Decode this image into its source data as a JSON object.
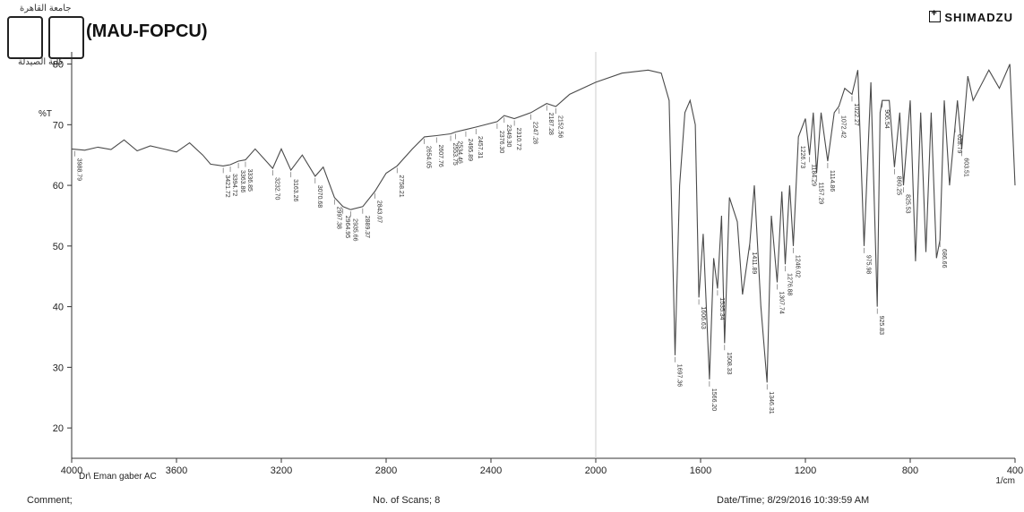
{
  "header": {
    "arabic_top": "جامعة القاهرة",
    "arabic_bottom": "كلية الصيدلة",
    "lab_title": "(MAU-FOPCU)",
    "brand": "SHIMADZU"
  },
  "sample": {
    "label": "Dr\\ Eman gaber  AC"
  },
  "footer": {
    "comment": "Comment;",
    "scans": "No. of Scans; 8",
    "datetime": "Date/Time; 8/29/2016 10:39:59 AM"
  },
  "colors": {
    "trace": "#4a4a4a",
    "axis": "#333333",
    "grid": "#cccccc"
  },
  "chart_data": {
    "type": "line",
    "title": "",
    "xlabel": "1/cm",
    "ylabel": "%T",
    "xlim": [
      4000,
      400
    ],
    "ylim": [
      15,
      82
    ],
    "x_ticks": [
      4000,
      3600,
      3200,
      2800,
      2400,
      2000,
      1600,
      1200,
      800,
      400
    ],
    "y_ticks": [
      20,
      30,
      40,
      50,
      60,
      70,
      80
    ],
    "grid": false,
    "series": [
      {
        "points": [
          [
            4000,
            66
          ],
          [
            3950,
            65.8
          ],
          [
            3900,
            66.3
          ],
          [
            3850,
            65.9
          ],
          [
            3800,
            67.5
          ],
          [
            3750,
            65.7
          ],
          [
            3700,
            66.5
          ],
          [
            3650,
            66
          ],
          [
            3600,
            65.5
          ],
          [
            3550,
            67
          ],
          [
            3500,
            65
          ],
          [
            3470,
            63.5
          ],
          [
            3421.72,
            63.2
          ],
          [
            3394.72,
            63.4
          ],
          [
            3363.86,
            64
          ],
          [
            3336.85,
            64.2
          ],
          [
            3300,
            66
          ],
          [
            3232.7,
            62.8
          ],
          [
            3200,
            66
          ],
          [
            3163.26,
            62.5
          ],
          [
            3120,
            65
          ],
          [
            3070.68,
            61.5
          ],
          [
            3040,
            63
          ],
          [
            2997.38,
            58
          ],
          [
            2964.95,
            56.5
          ],
          [
            2935.66,
            56
          ],
          [
            2889.37,
            56.5
          ],
          [
            2843.07,
            59
          ],
          [
            2800,
            62
          ],
          [
            2758.21,
            63.2
          ],
          [
            2700,
            66
          ],
          [
            2654.05,
            68
          ],
          [
            2607.76,
            68.2
          ],
          [
            2553.75,
            68.5
          ],
          [
            2534.46,
            68.8
          ],
          [
            2495.89,
            69.2
          ],
          [
            2457.31,
            69.6
          ],
          [
            2376.3,
            70.5
          ],
          [
            2349.3,
            71.5
          ],
          [
            2310.72,
            71
          ],
          [
            2247.28,
            72
          ],
          [
            2187.28,
            73.5
          ],
          [
            2152.56,
            73
          ],
          [
            2100,
            75
          ],
          [
            2000,
            77
          ],
          [
            1900,
            78.5
          ],
          [
            1800,
            79
          ],
          [
            1750,
            78.5
          ],
          [
            1720,
            74
          ],
          [
            1697.36,
            32
          ],
          [
            1680,
            60
          ],
          [
            1660,
            72
          ],
          [
            1640,
            74
          ],
          [
            1620,
            70
          ],
          [
            1606.63,
            41.5
          ],
          [
            1590,
            52
          ],
          [
            1566.2,
            28
          ],
          [
            1550,
            48
          ],
          [
            1535.34,
            43
          ],
          [
            1520,
            55
          ],
          [
            1508.33,
            34
          ],
          [
            1490,
            58
          ],
          [
            1460,
            54
          ],
          [
            1440,
            42
          ],
          [
            1411.89,
            50.5
          ],
          [
            1395,
            60
          ],
          [
            1370,
            40
          ],
          [
            1346.31,
            27.5
          ],
          [
            1330,
            55
          ],
          [
            1307.74,
            44
          ],
          [
            1290,
            59
          ],
          [
            1276.88,
            47
          ],
          [
            1260,
            60
          ],
          [
            1246.02,
            50
          ],
          [
            1226.73,
            68
          ],
          [
            1200,
            71
          ],
          [
            1184.29,
            65
          ],
          [
            1170,
            72
          ],
          [
            1157.29,
            62
          ],
          [
            1140,
            72
          ],
          [
            1114.86,
            64
          ],
          [
            1090,
            72
          ],
          [
            1072.42,
            73
          ],
          [
            1050,
            76
          ],
          [
            1022.27,
            75
          ],
          [
            1000,
            79
          ],
          [
            975.98,
            50
          ],
          [
            950,
            77
          ],
          [
            925.83,
            40
          ],
          [
            915,
            72
          ],
          [
            906.54,
            74
          ],
          [
            880,
            74
          ],
          [
            860.25,
            63
          ],
          [
            840,
            72
          ],
          [
            825.53,
            60
          ],
          [
            800,
            74
          ],
          [
            780,
            47.5
          ],
          [
            760,
            72
          ],
          [
            740,
            49
          ],
          [
            720,
            72
          ],
          [
            700,
            48
          ],
          [
            686.66,
            51
          ],
          [
            670,
            74
          ],
          [
            650,
            60
          ],
          [
            620,
            74
          ],
          [
            603.51,
            66
          ],
          [
            580,
            78
          ],
          [
            560,
            74
          ],
          [
            500,
            79
          ],
          [
            460,
            76
          ],
          [
            420,
            80
          ],
          [
            400,
            60
          ]
        ]
      }
    ],
    "peak_labels": [
      "3988.79",
      "3421.72",
      "3394.72",
      "3363.86",
      "3336.85",
      "3232.70",
      "3163.26",
      "3070.68",
      "2997.38",
      "2964.95",
      "2935.66",
      "2889.37",
      "2843.07",
      "2758.21",
      "2654.05",
      "2607.76",
      "2553.75",
      "2534.46",
      "2495.89",
      "2457.31",
      "2376.30",
      "2349.30",
      "2310.72",
      "2247.28",
      "2187.28",
      "2152.56",
      "1697.36",
      "1606.63",
      "1566.20",
      "1535.34",
      "1508.33",
      "1411.89",
      "1346.31",
      "1307.74",
      "1276.88",
      "1246.02",
      "1226.73",
      "1184.29",
      "1157.29",
      "1114.86",
      "1072.42",
      "1022.27",
      "975.98",
      "925.83",
      "906.54",
      "860.25",
      "825.53",
      "686.66",
      "603.51",
      "628.79"
    ]
  }
}
